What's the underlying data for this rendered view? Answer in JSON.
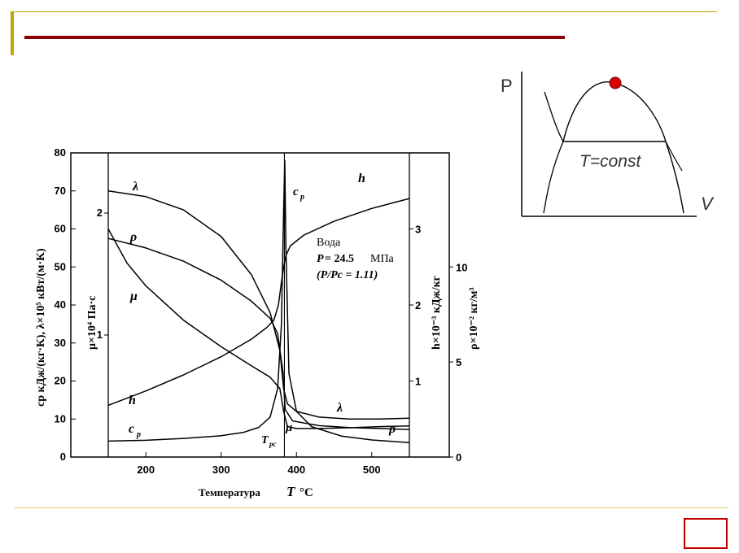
{
  "page": {
    "accent": "#8b0000",
    "frame_color": "#c8a000",
    "page_box_color": "#c00000"
  },
  "chart_data": [
    {
      "type": "line",
      "x_axis": {
        "label_prefix": "Температура ",
        "label_symbol": "T",
        "label_unit": " °C",
        "range": [
          150,
          550
        ],
        "ticks": [
          200,
          300,
          400,
          500
        ]
      },
      "y_axes": {
        "cp_lambda": {
          "label": "cp кДж/(кг·K),  λ×10⁵ кВт/(м·K)",
          "range": [
            0,
            80
          ],
          "ticks": [
            0,
            10,
            20,
            30,
            40,
            50,
            60,
            70,
            80
          ]
        },
        "mu": {
          "label": "μ×10⁴ Па·с",
          "ticks": [
            1,
            2
          ]
        },
        "h": {
          "label": "h×10⁻³ кДж/кг",
          "range": [
            0,
            3.6
          ],
          "ticks": [
            1,
            2,
            3
          ]
        },
        "rho": {
          "label": "ρ×10⁻² кг/м³",
          "range": [
            0,
            16
          ],
          "ticks": [
            0,
            5,
            10
          ]
        }
      },
      "annotation": {
        "line1": "Вода",
        "line2_sym": "P",
        "line2_val": " = 24.5 ",
        "line2_unit": "МПа",
        "line3": "(P/Pc = 1.11)"
      },
      "labels": {
        "lambda": "λ",
        "rho": "ρ",
        "mu": "μ",
        "h": "h",
        "cp": "c",
        "cp_sub": "p",
        "tpc": "T",
        "tpc_sub": "pc"
      },
      "series": [
        {
          "key": "lambda",
          "axis": "cp_lambda",
          "x": [
            150,
            200,
            250,
            300,
            340,
            365,
            378,
            383,
            388,
            400,
            430,
            470,
            510,
            550
          ],
          "y": [
            70,
            68.5,
            65,
            58,
            48,
            38,
            28,
            18,
            14,
            12,
            10.5,
            10,
            10,
            10.2
          ]
        },
        {
          "key": "rho",
          "axis": "rho",
          "x": [
            150,
            200,
            250,
            300,
            340,
            365,
            375,
            382,
            385,
            395,
            430,
            470,
            510,
            550
          ],
          "y": [
            11.5,
            11.0,
            10.3,
            9.3,
            8.2,
            7.3,
            6.5,
            4.5,
            2.5,
            1.9,
            1.65,
            1.55,
            1.5,
            1.45
          ]
        },
        {
          "key": "mu",
          "axis": "cp_lambda",
          "x": [
            150,
            175,
            200,
            250,
            300,
            340,
            365,
            378,
            383,
            388,
            400,
            430,
            470,
            510,
            550
          ],
          "y": [
            60,
            51,
            45,
            36,
            29,
            24,
            21,
            18,
            12,
            8,
            7.5,
            7.5,
            7.7,
            8,
            8.2
          ]
        },
        {
          "key": "h",
          "axis": "h",
          "x": [
            150,
            200,
            250,
            300,
            340,
            360,
            370,
            376,
            380,
            383,
            386,
            392,
            410,
            450,
            500,
            550
          ],
          "y": [
            0.68,
            0.87,
            1.08,
            1.32,
            1.55,
            1.7,
            1.8,
            2.0,
            2.3,
            2.5,
            2.65,
            2.78,
            2.92,
            3.1,
            3.27,
            3.4
          ]
        },
        {
          "key": "cp",
          "axis": "cp_lambda",
          "x": [
            150,
            200,
            250,
            300,
            330,
            350,
            365,
            375,
            380,
            383,
            384.5,
            386,
            390,
            400,
            420,
            460,
            500,
            550
          ],
          "y": [
            4.2,
            4.4,
            4.9,
            5.6,
            6.5,
            7.8,
            10.5,
            18,
            35,
            65,
            78,
            55,
            22,
            12,
            8,
            5.5,
            4.5,
            3.8
          ]
        }
      ]
    },
    {
      "type": "diagram",
      "labels": {
        "p_axis": "P",
        "v_axis": "V",
        "isotherm": "T=const"
      },
      "critical_point_color": "#dd0000"
    }
  ]
}
